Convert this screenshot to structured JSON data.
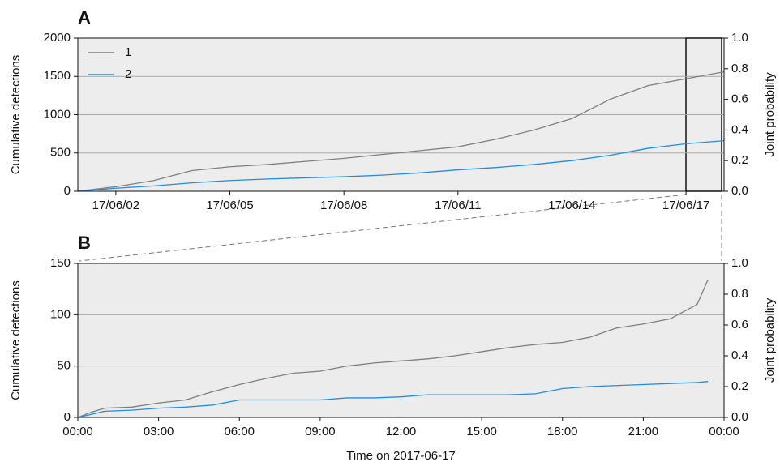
{
  "chart_data": [
    {
      "type": "line",
      "panel_label": "A",
      "y_label": "Cumulative detections",
      "y2_label": "Joint probability",
      "x": [
        "17/06/01",
        "17/06/02",
        "17/06/03",
        "17/06/04",
        "17/06/05",
        "17/06/06",
        "17/06/07",
        "17/06/08",
        "17/06/09",
        "17/06/10",
        "17/06/11",
        "17/06/12",
        "17/06/13",
        "17/06/14",
        "17/06/15",
        "17/06/16",
        "17/06/17",
        "17/06/18"
      ],
      "series": [
        {
          "name": "1",
          "color": "#7f7f7f",
          "values": [
            0,
            60,
            140,
            270,
            320,
            350,
            390,
            430,
            480,
            530,
            580,
            680,
            800,
            950,
            1200,
            1380,
            1470,
            1560
          ]
        },
        {
          "name": "2",
          "color": "#1f8ee0",
          "values": [
            0,
            40,
            70,
            110,
            140,
            160,
            175,
            190,
            210,
            240,
            280,
            310,
            350,
            400,
            470,
            560,
            620,
            660
          ]
        }
      ],
      "xlim": [
        "17/06/01",
        "17/06/18"
      ],
      "xticks": [
        "17/06/02",
        "17/06/05",
        "17/06/08",
        "17/06/11",
        "17/06/14",
        "17/06/17"
      ],
      "ylim": [
        0,
        2000
      ],
      "yticks": [
        0,
        500,
        1000,
        1500,
        2000
      ],
      "y2lim": [
        0,
        1
      ],
      "y2ticks": [
        {
          "value": 0,
          "label": "0.0"
        },
        {
          "value": 0.2,
          "label": "0.2"
        },
        {
          "value": 0.4,
          "label": "0.4"
        },
        {
          "value": 0.6,
          "label": "0.6"
        },
        {
          "value": 0.8,
          "label": "0.8"
        },
        {
          "value": 1,
          "label": "1.0"
        }
      ],
      "grid": true,
      "legend": "upper left"
    },
    {
      "type": "line",
      "panel_label": "B",
      "y_label": "Cumulative detections",
      "y2_label": "Joint probability",
      "x_label": "Time on 2017-06-17",
      "x": [
        0,
        0.5,
        1,
        2,
        3,
        4,
        5,
        6,
        7,
        8,
        9,
        10,
        11,
        12,
        13,
        14,
        15,
        16,
        17,
        18,
        19,
        20,
        21,
        22,
        23,
        23.4
      ],
      "series": [
        {
          "name": "1",
          "color": "#7f7f7f",
          "values": [
            0,
            5,
            9,
            10,
            14,
            17,
            25,
            32,
            38,
            43,
            45,
            50,
            53,
            55,
            57,
            60,
            64,
            68,
            71,
            73,
            78,
            87,
            91,
            96,
            110,
            134
          ]
        },
        {
          "name": "2",
          "color": "#1f8ee0",
          "values": [
            0,
            3,
            6,
            7,
            9,
            10,
            12,
            17,
            17,
            17,
            17,
            19,
            19,
            20,
            22,
            22,
            22,
            22,
            23,
            28,
            30,
            31,
            32,
            33,
            34,
            35
          ]
        }
      ],
      "xlim": [
        0,
        24
      ],
      "xticks": [
        {
          "value": 0,
          "label": "00:00"
        },
        {
          "value": 3,
          "label": "03:00"
        },
        {
          "value": 6,
          "label": "06:00"
        },
        {
          "value": 9,
          "label": "09:00"
        },
        {
          "value": 12,
          "label": "12:00"
        },
        {
          "value": 15,
          "label": "15:00"
        },
        {
          "value": 18,
          "label": "18:00"
        },
        {
          "value": 21,
          "label": "21:00"
        },
        {
          "value": 24,
          "label": "00:00"
        }
      ],
      "ylim": [
        0,
        150
      ],
      "yticks": [
        0,
        50,
        100,
        150
      ],
      "y2lim": [
        0,
        1
      ],
      "y2ticks": [
        {
          "value": 0,
          "label": "0.0"
        },
        {
          "value": 0.2,
          "label": "0.2"
        },
        {
          "value": 0.4,
          "label": "0.4"
        },
        {
          "value": 0.6,
          "label": "0.6"
        },
        {
          "value": 0.8,
          "label": "0.8"
        },
        {
          "value": 1,
          "label": "1.0"
        }
      ],
      "grid": true
    }
  ]
}
